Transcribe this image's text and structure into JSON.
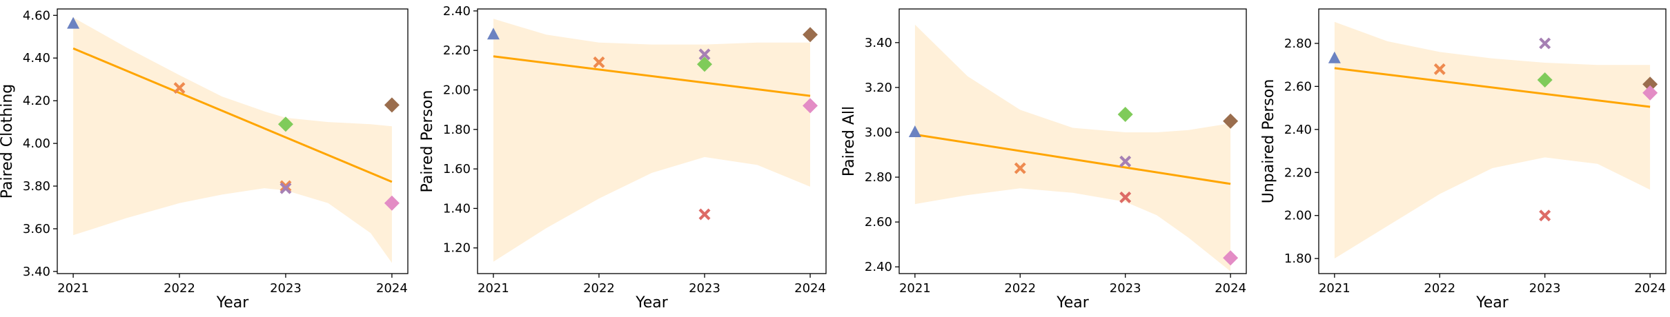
{
  "figure": {
    "xlabel": "Year"
  },
  "colors": {
    "trend": "#FFA500",
    "band": "#FFF0D9",
    "triangle": "#6B82C1",
    "x_orange": "#EE8A4F",
    "diamond_green": "#7FCB5A",
    "x_purple": "#A680B4",
    "x_red": "#DD6B66",
    "diamond_brown": "#9A6D4D",
    "diamond_pink": "#E38CC5"
  },
  "chart_data": [
    {
      "type": "scatter",
      "title": "",
      "xlabel": "Year",
      "ylabel": "Paired Clothing",
      "xlim": [
        2020.85,
        2024.15
      ],
      "ylim": [
        3.39,
        4.63
      ],
      "x_ticks": [
        2021,
        2022,
        2023,
        2024
      ],
      "x_tick_labels": [
        "2021",
        "2022",
        "2023",
        "2024"
      ],
      "y_ticks": [
        3.4,
        3.6,
        3.8,
        4.0,
        4.2,
        4.4,
        4.6
      ],
      "y_tick_labels": [
        "3.40",
        "3.60",
        "3.80",
        "4.00",
        "4.20",
        "4.40",
        "4.60"
      ],
      "trend": {
        "start": [
          2021,
          4.445
        ],
        "end": [
          2024,
          3.82
        ]
      },
      "band": {
        "x": [
          2021,
          2021.5,
          2022,
          2022.4,
          2022.8,
          2023,
          2023.4,
          2023.8,
          2024
        ],
        "upper": [
          4.59,
          4.45,
          4.32,
          4.22,
          4.15,
          4.12,
          4.1,
          4.09,
          4.08
        ],
        "lower": [
          3.57,
          3.65,
          3.72,
          3.76,
          3.79,
          3.78,
          3.72,
          3.58,
          3.44
        ]
      },
      "points": [
        {
          "x": 2021,
          "y": 4.56,
          "marker": "triangle",
          "color": "#6B82C1"
        },
        {
          "x": 2022,
          "y": 4.26,
          "marker": "x",
          "color": "#EE8A4F"
        },
        {
          "x": 2023,
          "y": 3.8,
          "marker": "x",
          "color": "#EE8A4F"
        },
        {
          "x": 2023,
          "y": 4.09,
          "marker": "diamond",
          "color": "#7FCB5A"
        },
        {
          "x": 2023,
          "y": 3.79,
          "marker": "x",
          "color": "#A680B4"
        },
        {
          "x": 2024,
          "y": 4.18,
          "marker": "diamond",
          "color": "#9A6D4D"
        },
        {
          "x": 2024,
          "y": 3.72,
          "marker": "diamond",
          "color": "#E38CC5"
        }
      ]
    },
    {
      "type": "scatter",
      "title": "",
      "xlabel": "Year",
      "ylabel": "Paired Person",
      "xlim": [
        2020.85,
        2024.15
      ],
      "ylim": [
        1.07,
        2.41
      ],
      "x_ticks": [
        2021,
        2022,
        2023,
        2024
      ],
      "x_tick_labels": [
        "2021",
        "2022",
        "2023",
        "2024"
      ],
      "y_ticks": [
        1.2,
        1.4,
        1.6,
        1.8,
        2.0,
        2.2,
        2.4
      ],
      "y_tick_labels": [
        "1.20",
        "1.40",
        "1.60",
        "1.80",
        "2.00",
        "2.20",
        "2.40"
      ],
      "trend": {
        "start": [
          2021,
          2.17
        ],
        "end": [
          2024,
          1.97
        ]
      },
      "band": {
        "x": [
          2021,
          2021.5,
          2022,
          2022.5,
          2023,
          2023.5,
          2024
        ],
        "upper": [
          2.36,
          2.28,
          2.24,
          2.23,
          2.23,
          2.24,
          2.24
        ],
        "lower": [
          1.13,
          1.3,
          1.45,
          1.58,
          1.66,
          1.62,
          1.51
        ]
      },
      "points": [
        {
          "x": 2021,
          "y": 2.28,
          "marker": "triangle",
          "color": "#6B82C1"
        },
        {
          "x": 2022,
          "y": 2.14,
          "marker": "x",
          "color": "#EE8A4F"
        },
        {
          "x": 2023,
          "y": 2.13,
          "marker": "diamond",
          "color": "#7FCB5A"
        },
        {
          "x": 2023,
          "y": 2.18,
          "marker": "x",
          "color": "#A680B4"
        },
        {
          "x": 2023,
          "y": 1.37,
          "marker": "x",
          "color": "#DD6B66"
        },
        {
          "x": 2024,
          "y": 2.28,
          "marker": "diamond",
          "color": "#9A6D4D"
        },
        {
          "x": 2024,
          "y": 1.92,
          "marker": "diamond",
          "color": "#E38CC5"
        }
      ]
    },
    {
      "type": "scatter",
      "title": "",
      "xlabel": "Year",
      "ylabel": "Paired All",
      "xlim": [
        2020.85,
        2024.15
      ],
      "ylim": [
        2.37,
        3.55
      ],
      "x_ticks": [
        2021,
        2022,
        2023,
        2024
      ],
      "x_tick_labels": [
        "2021",
        "2022",
        "2023",
        "2024"
      ],
      "y_ticks": [
        2.4,
        2.6,
        2.8,
        3.0,
        3.2,
        3.4
      ],
      "y_tick_labels": [
        "2.40",
        "2.60",
        "2.80",
        "3.00",
        "3.20",
        "3.40"
      ],
      "trend": {
        "start": [
          2021,
          2.99
        ],
        "end": [
          2024,
          2.77
        ]
      },
      "band": {
        "x": [
          2021,
          2021.5,
          2022,
          2022.5,
          2023,
          2023.3,
          2023.6,
          2024
        ],
        "upper": [
          3.48,
          3.25,
          3.1,
          3.02,
          3.0,
          3.0,
          3.01,
          3.04
        ],
        "lower": [
          2.68,
          2.72,
          2.75,
          2.73,
          2.69,
          2.63,
          2.53,
          2.38
        ]
      },
      "points": [
        {
          "x": 2021,
          "y": 3.0,
          "marker": "triangle",
          "color": "#6B82C1"
        },
        {
          "x": 2022,
          "y": 2.84,
          "marker": "x",
          "color": "#EE8A4F"
        },
        {
          "x": 2023,
          "y": 3.08,
          "marker": "diamond",
          "color": "#7FCB5A"
        },
        {
          "x": 2023,
          "y": 2.87,
          "marker": "x",
          "color": "#A680B4"
        },
        {
          "x": 2023,
          "y": 2.71,
          "marker": "x",
          "color": "#DD6B66"
        },
        {
          "x": 2024,
          "y": 3.05,
          "marker": "diamond",
          "color": "#9A6D4D"
        },
        {
          "x": 2024,
          "y": 2.44,
          "marker": "diamond",
          "color": "#E38CC5"
        }
      ]
    },
    {
      "type": "scatter",
      "title": "",
      "xlabel": "Year",
      "ylabel": "Unpaired Person",
      "xlim": [
        2020.85,
        2024.15
      ],
      "ylim": [
        1.73,
        2.96
      ],
      "x_ticks": [
        2021,
        2022,
        2023,
        2024
      ],
      "x_tick_labels": [
        "2021",
        "2022",
        "2023",
        "2024"
      ],
      "y_ticks": [
        1.8,
        2.0,
        2.2,
        2.4,
        2.6,
        2.8
      ],
      "y_tick_labels": [
        "1.80",
        "2.00",
        "2.20",
        "2.40",
        "2.60",
        "2.80"
      ],
      "trend": {
        "start": [
          2021,
          2.685
        ],
        "end": [
          2024,
          2.505
        ]
      },
      "band": {
        "x": [
          2021,
          2021.5,
          2022,
          2022.5,
          2023,
          2023.5,
          2024
        ],
        "upper": [
          2.9,
          2.81,
          2.76,
          2.73,
          2.71,
          2.7,
          2.7
        ],
        "lower": [
          1.8,
          1.95,
          2.1,
          2.22,
          2.27,
          2.24,
          2.12
        ]
      },
      "points": [
        {
          "x": 2021,
          "y": 2.73,
          "marker": "triangle",
          "color": "#6B82C1"
        },
        {
          "x": 2022,
          "y": 2.68,
          "marker": "x",
          "color": "#EE8A4F"
        },
        {
          "x": 2023,
          "y": 2.63,
          "marker": "diamond",
          "color": "#7FCB5A"
        },
        {
          "x": 2023,
          "y": 2.8,
          "marker": "x",
          "color": "#A680B4"
        },
        {
          "x": 2023,
          "y": 2.0,
          "marker": "x",
          "color": "#DD6B66"
        },
        {
          "x": 2024,
          "y": 2.61,
          "marker": "diamond",
          "color": "#9A6D4D"
        },
        {
          "x": 2024,
          "y": 2.57,
          "marker": "diamond",
          "color": "#E38CC5"
        }
      ]
    }
  ]
}
